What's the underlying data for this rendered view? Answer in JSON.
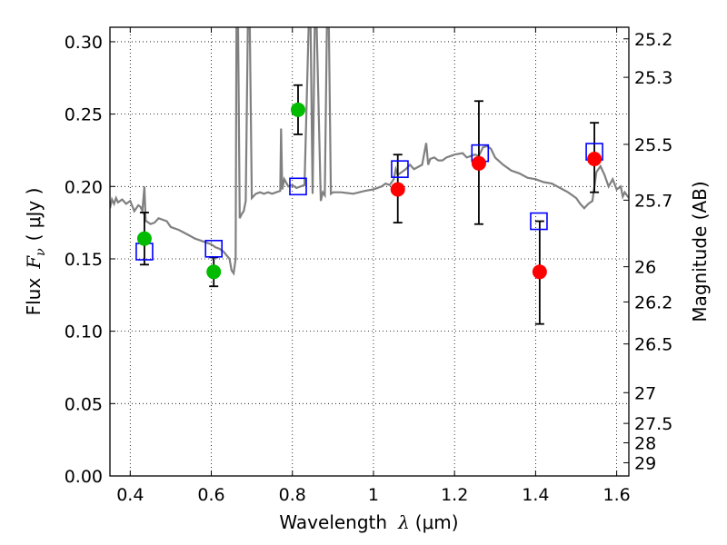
{
  "chart_data": {
    "type": "scatter",
    "xlabel_text": "Wavelength",
    "xlabel_symbol": "λ",
    "xlabel_unit": "(μm)",
    "ylabel_text": "Flux",
    "ylabel_symbol": "F",
    "ylabel_subscript": "ν",
    "ylabel_unit": "( μJy )",
    "y2label": "Magnitude (AB)",
    "xlim": [
      0.35,
      1.63
    ],
    "ylim": [
      0.0,
      0.31
    ],
    "grid": true,
    "xticks": [
      0.4,
      0.6,
      0.8,
      1.0,
      1.2,
      1.4,
      1.6
    ],
    "xtick_labels": [
      "0.4",
      "0.6",
      "0.8",
      "1",
      "1.2",
      "1.4",
      "1.6"
    ],
    "yticks": [
      0.0,
      0.05,
      0.1,
      0.15,
      0.2,
      0.25,
      0.3
    ],
    "ytick_labels": [
      "0.00",
      "0.05",
      "0.10",
      "0.15",
      "0.20",
      "0.25",
      "0.30"
    ],
    "magnitude_ticks": [
      {
        "label": "25.2",
        "mag": 25.2
      },
      {
        "label": "25.3",
        "mag": 25.3
      },
      {
        "label": "25.5",
        "mag": 25.5
      },
      {
        "label": "25.7",
        "mag": 25.7
      },
      {
        "label": "26",
        "mag": 26.0
      },
      {
        "label": "26.2",
        "mag": 26.2
      },
      {
        "label": "26.5",
        "mag": 26.5
      },
      {
        "label": "27",
        "mag": 27.0
      },
      {
        "label": "27.5",
        "mag": 27.5
      },
      {
        "label": "28",
        "mag": 28.0
      },
      {
        "label": "29",
        "mag": 29.0
      }
    ],
    "colors": {
      "green": "#00bb00",
      "red": "#ff0000",
      "model": "#808080",
      "squares": "#0000ff",
      "errorbar": "#000000"
    },
    "series": [
      {
        "marker": "circle",
        "color": "#00bb00",
        "points": [
          {
            "x": 0.435,
            "y": 0.164,
            "lo": 0.146,
            "hi": 0.182
          },
          {
            "x": 0.606,
            "y": 0.141,
            "lo": 0.131,
            "hi": 0.151
          },
          {
            "x": 0.814,
            "y": 0.253,
            "lo": 0.236,
            "hi": 0.27
          }
        ]
      },
      {
        "marker": "circle",
        "color": "#ff0000",
        "points": [
          {
            "x": 1.06,
            "y": 0.198,
            "lo": 0.175,
            "hi": 0.222
          },
          {
            "x": 1.26,
            "y": 0.216,
            "lo": 0.174,
            "hi": 0.259
          },
          {
            "x": 1.41,
            "y": 0.141,
            "lo": 0.105,
            "hi": 0.176
          },
          {
            "x": 1.545,
            "y": 0.219,
            "lo": 0.196,
            "hi": 0.244
          }
        ]
      },
      {
        "marker": "square",
        "color": "#0000ff",
        "points": [
          {
            "x": 0.435,
            "y": 0.155
          },
          {
            "x": 0.606,
            "y": 0.157
          },
          {
            "x": 0.814,
            "y": 0.2
          },
          {
            "x": 1.065,
            "y": 0.212
          },
          {
            "x": 1.263,
            "y": 0.223
          },
          {
            "x": 1.408,
            "y": 0.176
          },
          {
            "x": 1.545,
            "y": 0.224
          }
        ]
      }
    ],
    "model_curve": {
      "color": "#808080",
      "points": [
        [
          0.35,
          0.185
        ],
        [
          0.355,
          0.191
        ],
        [
          0.36,
          0.188
        ],
        [
          0.365,
          0.192
        ],
        [
          0.37,
          0.189
        ],
        [
          0.38,
          0.191
        ],
        [
          0.39,
          0.188
        ],
        [
          0.4,
          0.19
        ],
        [
          0.41,
          0.183
        ],
        [
          0.42,
          0.187
        ],
        [
          0.425,
          0.186
        ],
        [
          0.43,
          0.183
        ],
        [
          0.435,
          0.2
        ],
        [
          0.438,
          0.176
        ],
        [
          0.44,
          0.176
        ],
        [
          0.45,
          0.174
        ],
        [
          0.46,
          0.175
        ],
        [
          0.47,
          0.178
        ],
        [
          0.48,
          0.177
        ],
        [
          0.49,
          0.176
        ],
        [
          0.5,
          0.172
        ],
        [
          0.52,
          0.17
        ],
        [
          0.54,
          0.167
        ],
        [
          0.56,
          0.164
        ],
        [
          0.58,
          0.162
        ],
        [
          0.6,
          0.16
        ],
        [
          0.61,
          0.158
        ],
        [
          0.62,
          0.157
        ],
        [
          0.63,
          0.155
        ],
        [
          0.645,
          0.15
        ],
        [
          0.65,
          0.142
        ],
        [
          0.655,
          0.14
        ],
        [
          0.66,
          0.15
        ],
        [
          0.662,
          0.31
        ],
        [
          0.666,
          0.31
        ],
        [
          0.67,
          0.178
        ],
        [
          0.675,
          0.181
        ],
        [
          0.68,
          0.183
        ],
        [
          0.685,
          0.19
        ],
        [
          0.69,
          0.31
        ],
        [
          0.695,
          0.31
        ],
        [
          0.7,
          0.192
        ],
        [
          0.71,
          0.195
        ],
        [
          0.72,
          0.196
        ],
        [
          0.73,
          0.195
        ],
        [
          0.74,
          0.196
        ],
        [
          0.75,
          0.195
        ],
        [
          0.76,
          0.196
        ],
        [
          0.77,
          0.197
        ],
        [
          0.772,
          0.24
        ],
        [
          0.775,
          0.198
        ],
        [
          0.78,
          0.205
        ],
        [
          0.79,
          0.2
        ],
        [
          0.8,
          0.201
        ],
        [
          0.81,
          0.199
        ],
        [
          0.82,
          0.2
        ],
        [
          0.83,
          0.201
        ],
        [
          0.84,
          0.31
        ],
        [
          0.845,
          0.31
        ],
        [
          0.85,
          0.195
        ],
        [
          0.855,
          0.31
        ],
        [
          0.86,
          0.31
        ],
        [
          0.87,
          0.19
        ],
        [
          0.875,
          0.196
        ],
        [
          0.88,
          0.194
        ],
        [
          0.885,
          0.31
        ],
        [
          0.89,
          0.31
        ],
        [
          0.895,
          0.195
        ],
        [
          0.9,
          0.196
        ],
        [
          0.92,
          0.196
        ],
        [
          0.95,
          0.195
        ],
        [
          0.98,
          0.197
        ],
        [
          1.0,
          0.198
        ],
        [
          1.02,
          0.2
        ],
        [
          1.03,
          0.202
        ],
        [
          1.04,
          0.201
        ],
        [
          1.05,
          0.205
        ],
        [
          1.055,
          0.212
        ],
        [
          1.06,
          0.208
        ],
        [
          1.07,
          0.21
        ],
        [
          1.08,
          0.212
        ],
        [
          1.09,
          0.215
        ],
        [
          1.1,
          0.212
        ],
        [
          1.12,
          0.215
        ],
        [
          1.13,
          0.23
        ],
        [
          1.135,
          0.215
        ],
        [
          1.14,
          0.219
        ],
        [
          1.15,
          0.22
        ],
        [
          1.16,
          0.218
        ],
        [
          1.17,
          0.218
        ],
        [
          1.18,
          0.22
        ],
        [
          1.19,
          0.221
        ],
        [
          1.2,
          0.222
        ],
        [
          1.22,
          0.223
        ],
        [
          1.23,
          0.22
        ],
        [
          1.24,
          0.221
        ],
        [
          1.25,
          0.222
        ],
        [
          1.26,
          0.221
        ],
        [
          1.27,
          0.227
        ],
        [
          1.28,
          0.228
        ],
        [
          1.29,
          0.226
        ],
        [
          1.3,
          0.22
        ],
        [
          1.32,
          0.215
        ],
        [
          1.34,
          0.211
        ],
        [
          1.36,
          0.209
        ],
        [
          1.38,
          0.206
        ],
        [
          1.4,
          0.205
        ],
        [
          1.42,
          0.203
        ],
        [
          1.44,
          0.202
        ],
        [
          1.46,
          0.199
        ],
        [
          1.48,
          0.196
        ],
        [
          1.5,
          0.192
        ],
        [
          1.51,
          0.188
        ],
        [
          1.52,
          0.185
        ],
        [
          1.53,
          0.188
        ],
        [
          1.54,
          0.19
        ],
        [
          1.55,
          0.21
        ],
        [
          1.56,
          0.214
        ],
        [
          1.57,
          0.208
        ],
        [
          1.58,
          0.2
        ],
        [
          1.59,
          0.205
        ],
        [
          1.6,
          0.198
        ],
        [
          1.61,
          0.2
        ],
        [
          1.615,
          0.193
        ],
        [
          1.62,
          0.196
        ],
        [
          1.63,
          0.192
        ]
      ]
    }
  }
}
